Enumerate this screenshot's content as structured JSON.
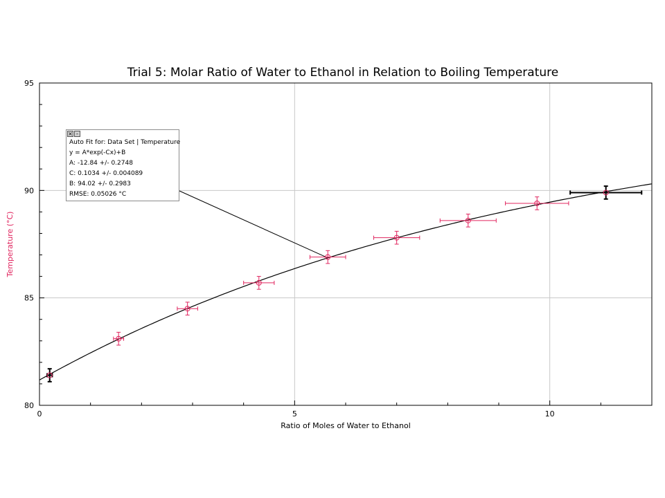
{
  "chart_data": {
    "type": "scatter",
    "title": "Trial 5: Molar Ratio of Water to Ethanol in Relation to Boiling Temperature",
    "xlabel": "Ratio of Moles of Water to Ethanol",
    "ylabel": "Temperature (°C)",
    "xlim": [
      0,
      12
    ],
    "ylim": [
      80,
      95
    ],
    "x_ticks": [
      0,
      5,
      10
    ],
    "y_ticks": [
      80,
      85,
      90,
      95
    ],
    "grid": true,
    "colors": {
      "points": "#e0245e",
      "fit": "#000000",
      "ylabel": "#e0245e",
      "grid": "#c8c8c8"
    },
    "series": [
      {
        "points": [
          {
            "x": 0.2,
            "y": 81.4,
            "xerr": 0.05,
            "yerr": 0.3
          },
          {
            "x": 1.55,
            "y": 83.1,
            "xerr": 0.1,
            "yerr": 0.3
          },
          {
            "x": 2.9,
            "y": 84.5,
            "xerr": 0.2,
            "yerr": 0.3
          },
          {
            "x": 4.3,
            "y": 85.7,
            "xerr": 0.3,
            "yerr": 0.3
          },
          {
            "x": 5.65,
            "y": 86.9,
            "xerr": 0.35,
            "yerr": 0.3
          },
          {
            "x": 7.0,
            "y": 87.8,
            "xerr": 0.45,
            "yerr": 0.3
          },
          {
            "x": 8.4,
            "y": 88.6,
            "xerr": 0.55,
            "yerr": 0.3
          },
          {
            "x": 9.75,
            "y": 89.4,
            "xerr": 0.62,
            "yerr": 0.3
          },
          {
            "x": 11.1,
            "y": 89.9,
            "xerr": 0.7,
            "yerr": 0.3
          }
        ]
      }
    ],
    "fit": {
      "equation": "y = A*exp(-Cx)+B",
      "A": -12.84,
      "C": 0.1034,
      "B": 94.02,
      "x_range": [
        0,
        12
      ]
    }
  },
  "fit_box": {
    "heading": "Auto Fit for: Data Set | Temperature",
    "equation": "y = A*exp(-Cx)+B",
    "a_line": "A: -12.84 +/- 0.2748",
    "c_line": "C: 0.1034 +/- 0.004089",
    "b_line": "B: 94.02 +/- 0.2983",
    "rmse_line": "RMSE: 0.05026 °C",
    "close_glyph": "×",
    "minimize_glyph": "-",
    "anchor_point_x": 5.65
  }
}
